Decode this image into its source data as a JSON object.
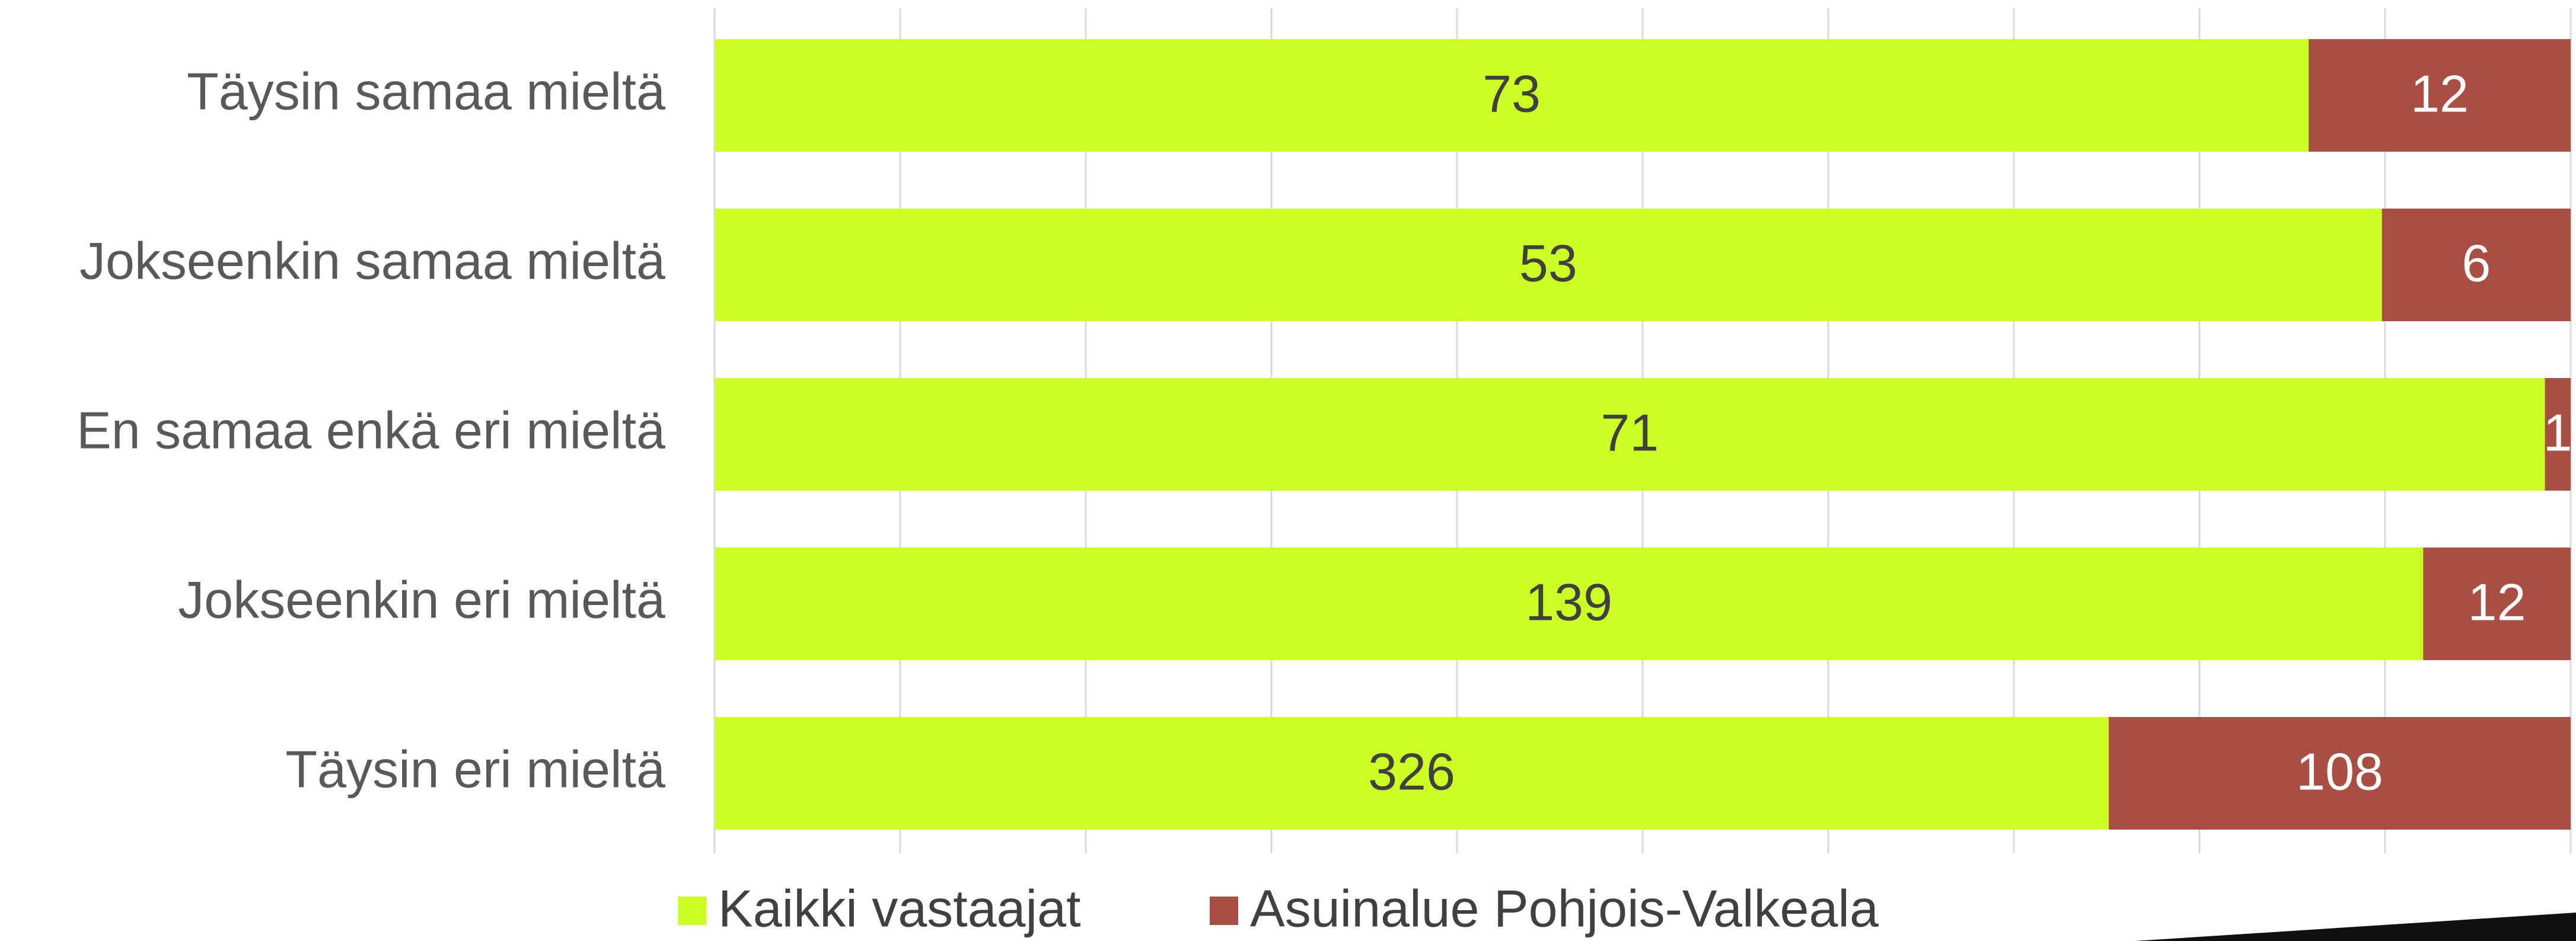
{
  "chart_data": {
    "type": "stacked-bar-100",
    "categories": [
      "Täysin samaa mieltä",
      "Jokseenkin samaa mieltä",
      "En samaa enkä eri mieltä",
      "Jokseenkin eri mieltä",
      "Täysin eri mieltä"
    ],
    "series": [
      {
        "name": "Kaikki vastaajat",
        "color": "#ccff24",
        "values": [
          73,
          53,
          71,
          139,
          326
        ]
      },
      {
        "name": "Asuinalue Pohjois-Valkeala",
        "color": "#a84e42",
        "values": [
          12,
          6,
          1,
          12,
          108
        ]
      }
    ],
    "grid": true,
    "legend": "bottom"
  }
}
